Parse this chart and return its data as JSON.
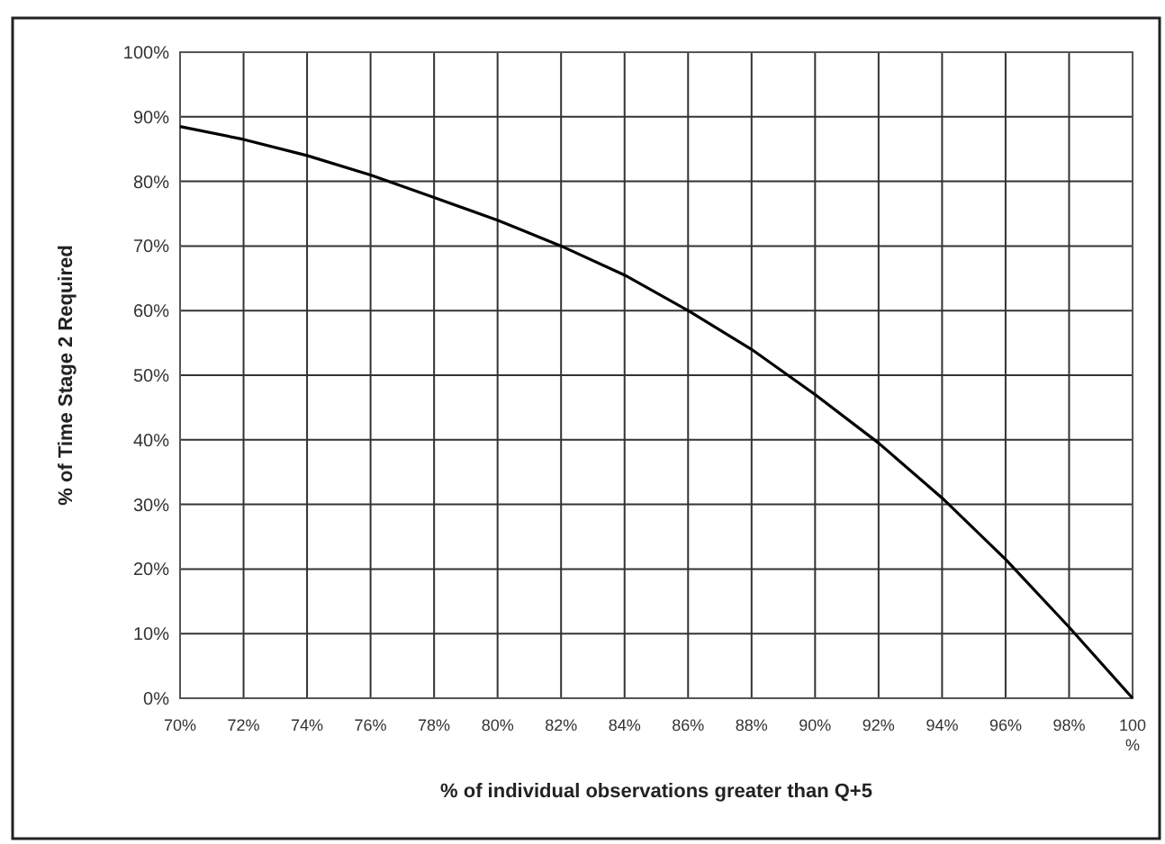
{
  "chart_data": {
    "type": "line",
    "xlabel": "% of individual observations greater than Q+5",
    "ylabel": "% of Time Stage 2 Required",
    "x": [
      70,
      72,
      74,
      76,
      78,
      80,
      82,
      84,
      86,
      88,
      90,
      92,
      94,
      96,
      98,
      100
    ],
    "series": [
      {
        "color": "#000000",
        "values": [
          88.5,
          86.5,
          84,
          81,
          77.5,
          74,
          70,
          65.5,
          60,
          54,
          47,
          39.5,
          31,
          21.5,
          11,
          0
        ]
      }
    ],
    "xlim": [
      70,
      100
    ],
    "ylim": [
      0,
      100
    ],
    "xticks": [
      {
        "value": 70,
        "label": "70%"
      },
      {
        "value": 72,
        "label": "72%"
      },
      {
        "value": 74,
        "label": "74%"
      },
      {
        "value": 76,
        "label": "76%"
      },
      {
        "value": 78,
        "label": "78%"
      },
      {
        "value": 80,
        "label": "80%"
      },
      {
        "value": 82,
        "label": "82%"
      },
      {
        "value": 84,
        "label": "84%"
      },
      {
        "value": 86,
        "label": "86%"
      },
      {
        "value": 88,
        "label": "88%"
      },
      {
        "value": 90,
        "label": "90%"
      },
      {
        "value": 92,
        "label": "92%"
      },
      {
        "value": 94,
        "label": "94%"
      },
      {
        "value": 96,
        "label": "96%"
      },
      {
        "value": 98,
        "label": "98%"
      },
      {
        "value": 100,
        "label": "100 %"
      }
    ],
    "yticks": [
      {
        "value": 0,
        "label": "0%"
      },
      {
        "value": 10,
        "label": "10%"
      },
      {
        "value": 20,
        "label": "20%"
      },
      {
        "value": 30,
        "label": "30%"
      },
      {
        "value": 40,
        "label": "40%"
      },
      {
        "value": 50,
        "label": "50%"
      },
      {
        "value": 60,
        "label": "60%"
      },
      {
        "value": 70,
        "label": "70%"
      },
      {
        "value": 80,
        "label": "80%"
      },
      {
        "value": 90,
        "label": "90%"
      },
      {
        "value": 100,
        "label": "100%"
      }
    ],
    "grid": true,
    "marker": "none",
    "line_style": "solid"
  }
}
